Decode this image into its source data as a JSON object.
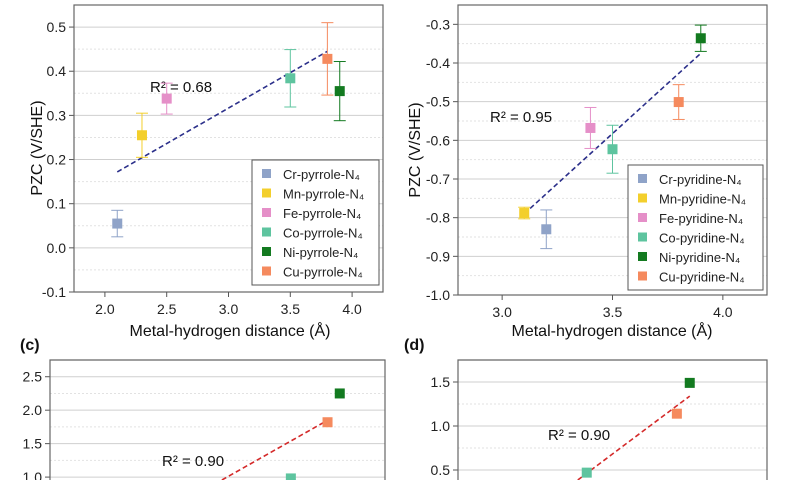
{
  "colors": {
    "Cr": "#8fa3c8",
    "Mn": "#f3cf2c",
    "Fe": "#e58fc8",
    "Co": "#5ec49f",
    "Ni": "#137a20",
    "Cu": "#f58a5e",
    "fit_a": "#2b2f8a",
    "fit_c": "#d42a2a"
  },
  "chart_data": [
    {
      "panel": "",
      "type": "scatter",
      "xlabel": "Metal-hydrogen distance (Å)",
      "ylabel": "PZC (V/SHE)",
      "xlim": [
        1.75,
        4.25
      ],
      "ylim": [
        -0.1,
        0.55
      ],
      "xticks": [
        "2.0",
        "2.5",
        "3.0",
        "3.5",
        "4.0"
      ],
      "yticks": [
        "-0.1",
        "0.0",
        "0.1",
        "0.2",
        "0.3",
        "0.4",
        "0.5"
      ],
      "grid": true,
      "legend": "bottom-right",
      "annotation": "R² = 0.68",
      "fit_line": {
        "x": [
          2.1,
          3.8
        ],
        "y": [
          0.172,
          0.445
        ],
        "style": "dashed",
        "color_key": "fit_a"
      },
      "series": [
        {
          "name": "Cr-pyrrole-N₄",
          "color_key": "Cr",
          "x": 2.1,
          "y": 0.055,
          "err": 0.03
        },
        {
          "name": "Mn-pyrrole-N₄",
          "color_key": "Mn",
          "x": 2.3,
          "y": 0.255,
          "err": 0.05
        },
        {
          "name": "Fe-pyrrole-N₄",
          "color_key": "Fe",
          "x": 2.5,
          "y": 0.338,
          "err": 0.035
        },
        {
          "name": "Co-pyrrole-N₄",
          "color_key": "Co",
          "x": 3.5,
          "y": 0.384,
          "err": 0.065
        },
        {
          "name": "Ni-pyrrole-N₄",
          "color_key": "Ni",
          "x": 3.9,
          "y": 0.355,
          "err": 0.067
        },
        {
          "name": "Cu-pyrrole-N₄",
          "color_key": "Cu",
          "x": 3.8,
          "y": 0.428,
          "err": 0.082
        }
      ]
    },
    {
      "panel": "",
      "type": "scatter",
      "xlabel": "Metal-hydrogen distance (Å)",
      "ylabel": "PZC (V/SHE)",
      "xlim": [
        2.8,
        4.2
      ],
      "ylim": [
        -1.0,
        -0.25
      ],
      "xticks": [
        "3.0",
        "3.5",
        "4.0"
      ],
      "yticks": [
        "-1.0",
        "-0.9",
        "-0.8",
        "-0.7",
        "-0.6",
        "-0.5",
        "-0.4",
        "-0.3"
      ],
      "grid": true,
      "legend": "bottom-right",
      "annotation": "R² = 0.95",
      "fit_line": {
        "x": [
          3.1,
          3.9
        ],
        "y": [
          -0.79,
          -0.375
        ],
        "style": "dashed",
        "color_key": "fit_a"
      },
      "series": [
        {
          "name": "Cr-pyridine-N₄",
          "color_key": "Cr",
          "x": 3.2,
          "y": -0.83,
          "err": 0.05
        },
        {
          "name": "Mn-pyridine-N₄",
          "color_key": "Mn",
          "x": 3.1,
          "y": -0.788,
          "err": 0.015
        },
        {
          "name": "Fe-pyridine-N₄",
          "color_key": "Fe",
          "x": 3.4,
          "y": -0.568,
          "err": 0.053
        },
        {
          "name": "Co-pyridine-N₄",
          "color_key": "Co",
          "x": 3.5,
          "y": -0.623,
          "err": 0.062
        },
        {
          "name": "Ni-pyridine-N₄",
          "color_key": "Ni",
          "x": 3.9,
          "y": -0.336,
          "err": 0.034
        },
        {
          "name": "Cu-pyridine-N₄",
          "color_key": "Cu",
          "x": 3.8,
          "y": -0.501,
          "err": 0.045
        }
      ]
    },
    {
      "panel": "(c)",
      "type": "scatter",
      "xlim": [
        1.53,
        4.27
      ],
      "ylim": [
        0,
        2.75
      ],
      "yticks": [
        "1.0",
        "1.5",
        "2.0",
        "2.5"
      ],
      "grid": true,
      "annotation": "R² = 0.90",
      "fit_line": {
        "x": [
          2.92,
          3.83
        ],
        "y": [
          0.94,
          1.88
        ],
        "style": "dashed",
        "color_key": "fit_c"
      },
      "series": [
        {
          "color_key": "Co",
          "x": 3.5,
          "y": 0.98
        },
        {
          "color_key": "Cu",
          "x": 3.8,
          "y": 1.82
        },
        {
          "color_key": "Ni",
          "x": 3.9,
          "y": 2.25
        }
      ]
    },
    {
      "panel": "(d)",
      "type": "scatter",
      "xlim": [
        3.0,
        4.2
      ],
      "ylim": [
        0,
        1.75
      ],
      "yticks": [
        "0.5",
        "1.0",
        "1.5"
      ],
      "grid": true,
      "annotation": "R² = 0.90",
      "fit_line": {
        "x": [
          3.46,
          3.9
        ],
        "y": [
          0.375,
          1.34
        ],
        "style": "dashed",
        "color_key": "fit_c"
      },
      "series": [
        {
          "color_key": "Co",
          "x": 3.5,
          "y": 0.47
        },
        {
          "color_key": "Cu",
          "x": 3.85,
          "y": 1.14
        },
        {
          "color_key": "Ni",
          "x": 3.9,
          "y": 1.49
        }
      ]
    }
  ]
}
